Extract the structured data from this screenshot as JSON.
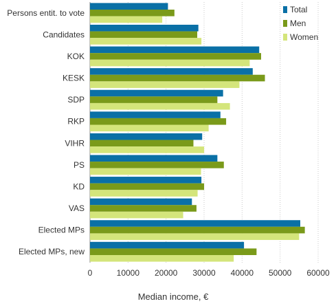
{
  "colors": {
    "total": "#0a70a6",
    "men": "#7a9a1a",
    "women": "#d4e57b",
    "grid": "#c8c8c8",
    "axis": "#888888"
  },
  "chart_data": {
    "type": "bar",
    "orientation": "horizontal",
    "categories": [
      "Persons entit. to vote",
      "Candidates",
      "KOK",
      "KESK",
      "SDP",
      "RKP",
      "VIHR",
      "PS",
      "KD",
      "VAS",
      "Elected MPs",
      "Elected MPs, new"
    ],
    "series": [
      {
        "name": "Total",
        "values": [
          20500,
          28500,
          44500,
          42800,
          35000,
          34300,
          29500,
          33500,
          29300,
          26800,
          55300,
          40500
        ]
      },
      {
        "name": "Men",
        "values": [
          22200,
          28200,
          45000,
          46000,
          33500,
          35800,
          27200,
          35200,
          30000,
          28000,
          56500,
          43800
        ]
      },
      {
        "name": "Women",
        "values": [
          19000,
          29300,
          42000,
          39300,
          36800,
          31200,
          30000,
          29200,
          28300,
          24500,
          55000,
          37800
        ]
      }
    ],
    "xlabel": "Median income, €",
    "xlim": [
      0,
      60000
    ],
    "xticks": [
      0,
      10000,
      20000,
      30000,
      40000,
      50000,
      60000
    ],
    "grid": true,
    "legend_position": "top-right"
  }
}
